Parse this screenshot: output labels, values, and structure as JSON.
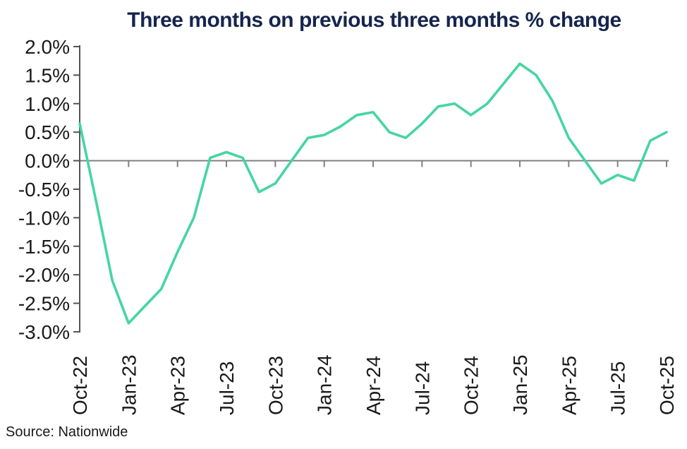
{
  "chart": {
    "title": "Three months on previous three months % change",
    "source": "Source: Nationwide"
  },
  "chart_data": {
    "type": "line",
    "title": "Three months on previous three months % change",
    "source": "Source: Nationwide",
    "series_name": "Three months on previous three months % change",
    "legend": "none",
    "grid": "zero-line-only",
    "ylim": [
      -3.0,
      2.0
    ],
    "y_tick_step": 0.5,
    "y_tick_labels": [
      "2.0%",
      "1.5%",
      "1.0%",
      "0.5%",
      "0.0%",
      "-0.5%",
      "-1.0%",
      "-1.5%",
      "-2.0%",
      "-2.5%",
      "-3.0%"
    ],
    "x": [
      "Oct-22",
      "Nov-22",
      "Dec-22",
      "Jan-23",
      "Feb-23",
      "Mar-23",
      "Apr-23",
      "May-23",
      "Jun-23",
      "Jul-23",
      "Aug-23",
      "Sep-23",
      "Oct-23",
      "Nov-23",
      "Dec-23",
      "Jan-24",
      "Feb-24",
      "Mar-24",
      "Apr-24",
      "May-24",
      "Jun-24",
      "Jul-24",
      "Aug-24",
      "Sep-24",
      "Oct-24",
      "Nov-24",
      "Dec-24",
      "Jan-25",
      "Feb-25",
      "Mar-25",
      "Apr-25",
      "May-25",
      "Jun-25",
      "Jul-25",
      "Aug-25",
      "Sep-25",
      "Oct-25"
    ],
    "values": [
      0.65,
      -0.7,
      -2.1,
      -2.85,
      -2.55,
      -2.25,
      -1.6,
      -1.0,
      0.05,
      0.15,
      0.05,
      -0.55,
      -0.4,
      0.0,
      0.4,
      0.45,
      0.6,
      0.8,
      0.85,
      0.5,
      0.4,
      0.65,
      0.95,
      1.0,
      0.8,
      1.0,
      1.35,
      1.7,
      1.5,
      1.05,
      0.4,
      0.0,
      -0.4,
      -0.25,
      -0.35,
      0.35,
      0.5
    ],
    "x_tick_labels": [
      "Oct-22",
      "Jan-23",
      "Apr-23",
      "Jul-23",
      "Oct-23",
      "Jan-24",
      "Apr-24",
      "Jul-24",
      "Oct-24",
      "Jan-25",
      "Apr-25",
      "Jul-25",
      "Oct-25"
    ],
    "x_tick_every_n_months": 3,
    "line_color": "#46D5A1",
    "axis_color": "#545454",
    "zero_line_color": "#808080",
    "label_color": "#1a1a1a",
    "title_color": "#16254E"
  }
}
